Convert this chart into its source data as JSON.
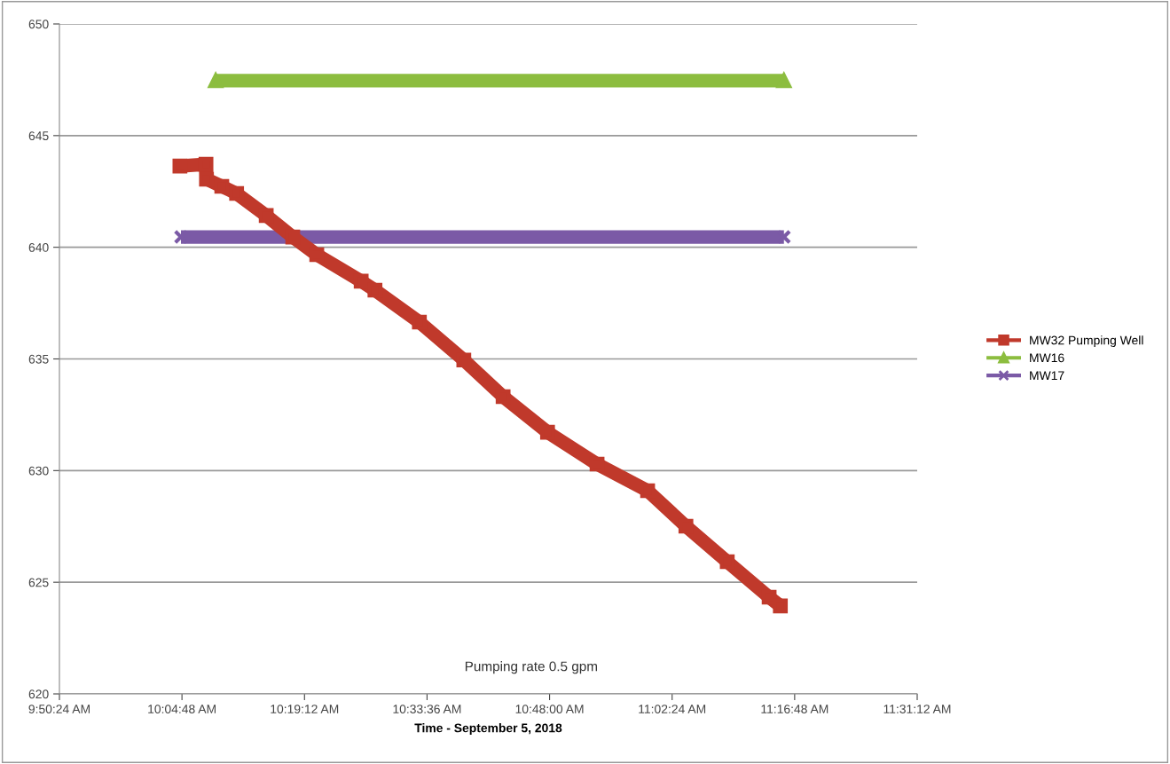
{
  "chart_data": {
    "type": "line",
    "xlabel": "Time - September 5, 2018",
    "xlim": [
      9.84,
      11.52
    ],
    "xticks": [
      {
        "value": 9.84,
        "label": "9:50:24 AM"
      },
      {
        "value": 10.08,
        "label": "10:04:48 AM"
      },
      {
        "value": 10.32,
        "label": "10:19:12 AM"
      },
      {
        "value": 10.56,
        "label": "10:33:36 AM"
      },
      {
        "value": 10.8,
        "label": "10:48:00 AM"
      },
      {
        "value": 11.04,
        "label": "11:02:24 AM"
      },
      {
        "value": 11.28,
        "label": "11:16:48 AM"
      },
      {
        "value": 11.52,
        "label": "11:31:12 AM"
      }
    ],
    "ylim": [
      620,
      650
    ],
    "yticks": [
      620,
      625,
      630,
      635,
      640,
      645,
      650
    ],
    "grid": "y",
    "legend": "right",
    "line_style": "solid",
    "annotations": [
      "Pumping rate 0.5 gpm"
    ],
    "series": [
      {
        "name": "MW32 Pumping Well",
        "color": "#c0392b",
        "marker": "square",
        "x": [
          10.076,
          10.127,
          10.128,
          10.158,
          10.187,
          10.245,
          10.297,
          10.344,
          10.431,
          10.458,
          10.545,
          10.632,
          10.709,
          10.796,
          10.893,
          10.992,
          11.067,
          11.148,
          11.23,
          11.252
        ],
        "values": [
          643.64,
          643.72,
          643.05,
          642.73,
          642.41,
          641.42,
          640.46,
          639.67,
          638.48,
          638.08,
          636.65,
          634.95,
          633.31,
          631.72,
          630.29,
          629.1,
          627.51,
          625.92,
          624.33,
          623.94
        ]
      },
      {
        "name": "MW16",
        "color": "#8cbd3f",
        "marker": "triangle",
        "x": [
          10.146,
          11.259
        ],
        "values": [
          647.46,
          647.46
        ]
      },
      {
        "name": "MW17",
        "color": "#7b5aa6",
        "marker": "cross",
        "x": [
          10.078,
          11.259
        ],
        "values": [
          640.46,
          640.46
        ]
      }
    ]
  }
}
